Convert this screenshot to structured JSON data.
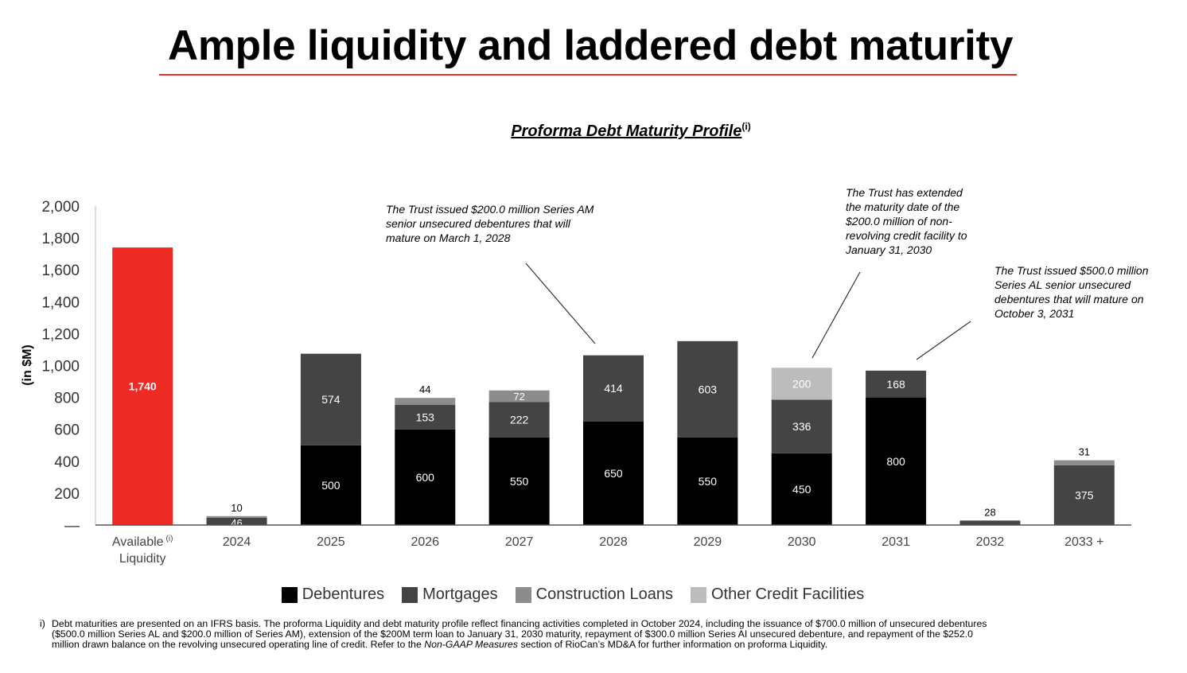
{
  "title": "Ample liquidity and laddered debt maturity",
  "colors": {
    "title_rule": "#e0302a",
    "liquidity": "#ee2a24",
    "debentures": "#000000",
    "mortgages": "#444444",
    "construction_loans": "#8c8c8c",
    "other_credit_facilities": "#bcbcbc"
  },
  "annotations": [
    "The Trust issued $200.0 million Series AM\nsenior unsecured debentures that will\nmature on March 1, 2028",
    "The Trust has extended\nthe maturity date of the\n$200.0 million of non-\nrevolving credit facility to\nJanuary 31, 2030",
    "The Trust issued $500.0 million\nSeries AL senior unsecured\ndebentures that will mature on\nOctober 3, 2031"
  ],
  "chart_data": {
    "type": "bar",
    "stacked": true,
    "title": "Proforma Debt Maturity Profile",
    "title_superscript": "(i)",
    "xlabel": "",
    "ylabel": "(in $M)",
    "ylim": [
      0,
      2000
    ],
    "yticks": [
      "—",
      "200",
      "400",
      "600",
      "800",
      "1,000",
      "1,200",
      "1,400",
      "1,600",
      "1,800",
      "2,000"
    ],
    "categories": [
      "Available\nLiquidity",
      "2024",
      "2025",
      "2026",
      "2027",
      "2028",
      "2029",
      "2030",
      "2031",
      "2032",
      "2033 +"
    ],
    "category_superscript": [
      "(i)",
      "",
      "",
      "",
      "",
      "",
      "",
      "",
      "",
      "",
      ""
    ],
    "series": [
      {
        "name": "Available Liquidity",
        "values": [
          1740,
          0,
          0,
          0,
          0,
          0,
          0,
          0,
          0,
          0,
          0
        ],
        "labels": [
          "1,740",
          "",
          "",
          "",
          "",
          "",
          "",
          "",
          "",
          "",
          ""
        ]
      },
      {
        "name": "Debentures",
        "values": [
          0,
          0,
          500,
          600,
          550,
          650,
          550,
          450,
          800,
          0,
          0
        ],
        "labels": [
          "",
          "",
          "500",
          "600",
          "550",
          "650",
          "550",
          "450",
          "800",
          "",
          ""
        ]
      },
      {
        "name": "Mortgages",
        "values": [
          0,
          46,
          574,
          153,
          222,
          414,
          603,
          336,
          168,
          28,
          375
        ],
        "labels": [
          "",
          "46",
          "574",
          "153",
          "222",
          "414",
          "603",
          "336",
          "168",
          "28",
          "375"
        ]
      },
      {
        "name": "Construction Loans",
        "values": [
          0,
          10,
          0,
          44,
          72,
          0,
          0,
          0,
          0,
          0,
          31
        ],
        "labels": [
          "",
          "10",
          "",
          "44",
          "72",
          "",
          "",
          "",
          "",
          "",
          "31"
        ]
      },
      {
        "name": "Other Credit Facilities",
        "values": [
          0,
          0,
          0,
          0,
          0,
          0,
          0,
          200,
          0,
          0,
          0
        ],
        "labels": [
          "",
          "",
          "",
          "",
          "",
          "",
          "",
          "200",
          "",
          "",
          ""
        ]
      }
    ],
    "legend": [
      "Debentures",
      "Mortgages",
      "Construction Loans",
      "Other Credit Facilities"
    ],
    "legend_position": "bottom",
    "grid": false
  },
  "footnote": {
    "marker": "i)",
    "text_before": "Debt maturities are presented on an IFRS basis. The proforma Liquidity and debt maturity profile reflect financing activities completed in October 2024, including the issuance of $700.0 million of unsecured debentures ($500.0 million Series AL and $200.0 million of Series AM), extension of the $200M term loan to January 31, 2030 maturity, repayment of $300.0 million Series AI unsecured debenture, and repayment of the $252.0 million drawn balance on the revolving unsecured operating line of credit. Refer to the ",
    "text_italic": "Non-GAAP Measures",
    "text_after": " section of RioCan’s MD&A for further information on proforma Liquidity."
  }
}
